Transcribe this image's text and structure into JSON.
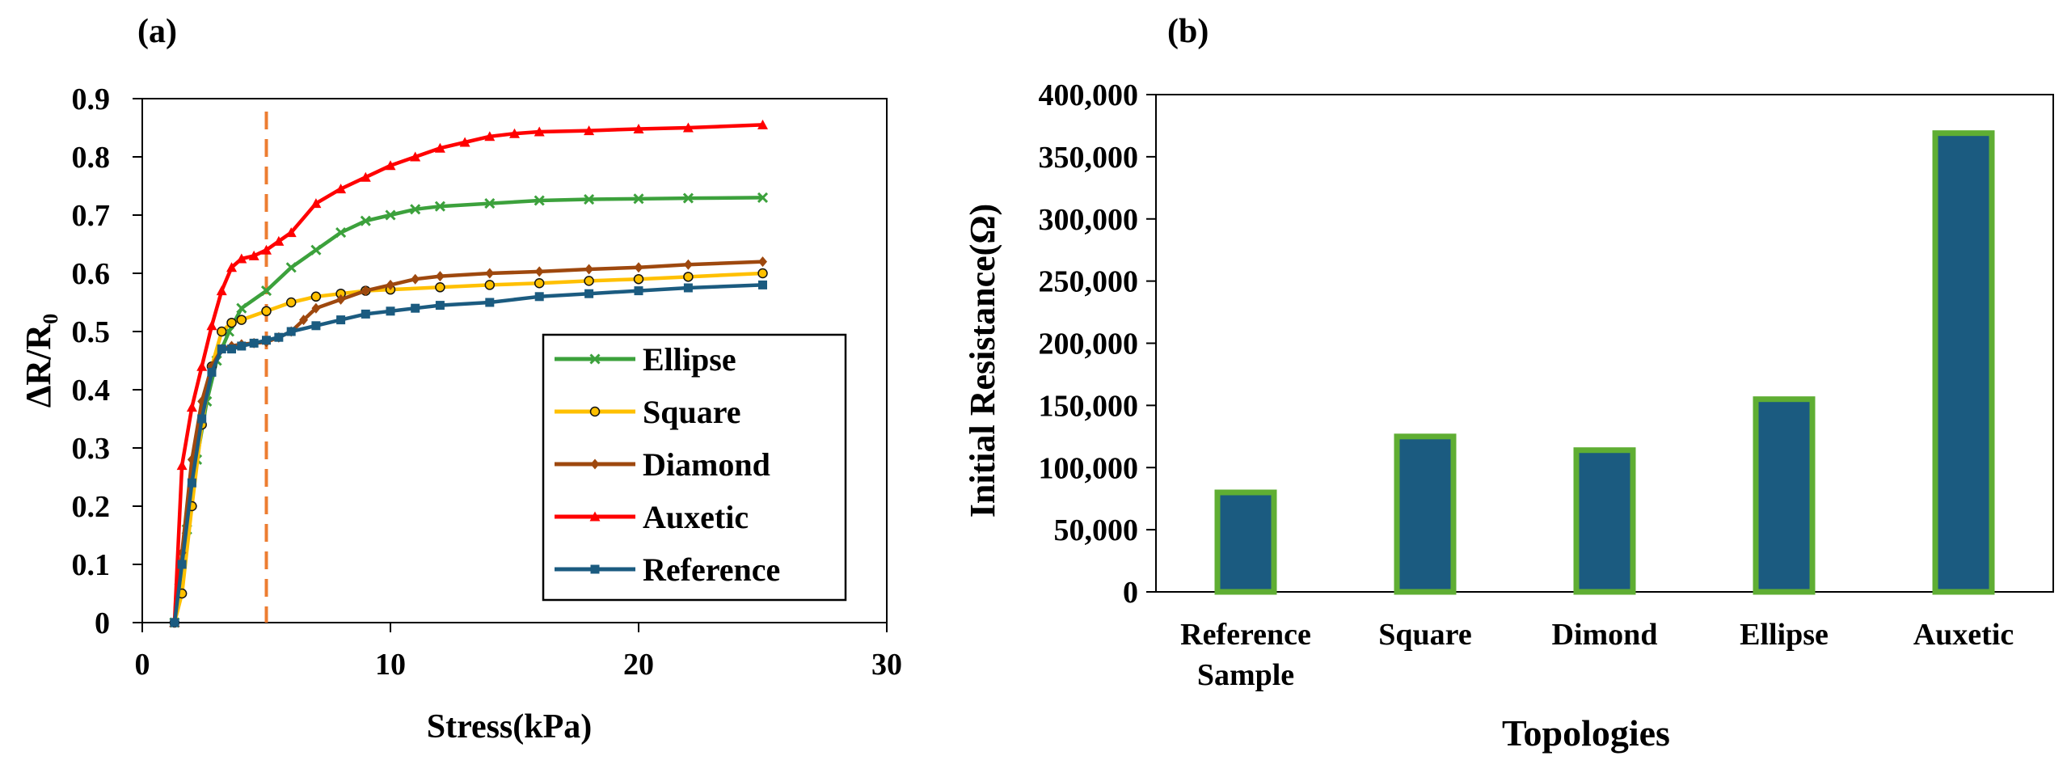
{
  "chart_data": [
    {
      "panel_label": "(a)",
      "type": "line",
      "xlabel": "Stress(kPa)",
      "ylabel": "ΔR/R₀",
      "xlim": [
        0,
        30
      ],
      "ylim": [
        0,
        0.9
      ],
      "xticks": [
        "0",
        "10",
        "20",
        "30"
      ],
      "yticks": [
        "0",
        "0.1",
        "0.2",
        "0.3",
        "0.4",
        "0.5",
        "0.6",
        "0.7",
        "0.8",
        "0.9"
      ],
      "grid": false,
      "legend_position": "bottom-right",
      "annotations": [
        {
          "type": "vertical-dashed-line",
          "x": 5,
          "color": "#ED7D31"
        }
      ],
      "series": [
        {
          "name": "Ellipse",
          "color": "#3CA13C",
          "marker": "x",
          "x": [
            1.3,
            1.5,
            1.8,
            2.2,
            2.6,
            3.0,
            3.5,
            4.0,
            5.0,
            6.0,
            7.0,
            8.0,
            9.0,
            10.0,
            11.0,
            12.0,
            14.0,
            16.0,
            18.0,
            20.0,
            22.0,
            25.0
          ],
          "y": [
            0.0,
            0.06,
            0.16,
            0.28,
            0.38,
            0.45,
            0.5,
            0.54,
            0.57,
            0.61,
            0.64,
            0.67,
            0.69,
            0.7,
            0.71,
            0.715,
            0.72,
            0.725,
            0.727,
            0.728,
            0.729,
            0.73
          ]
        },
        {
          "name": "Square",
          "color": "#FFC000",
          "marker": "circle",
          "x": [
            1.3,
            1.6,
            2.0,
            2.4,
            2.8,
            3.2,
            3.6,
            4.0,
            5.0,
            6.0,
            7.0,
            8.0,
            9.0,
            10.0,
            12.0,
            14.0,
            16.0,
            18.0,
            20.0,
            22.0,
            25.0
          ],
          "y": [
            0.0,
            0.05,
            0.2,
            0.34,
            0.44,
            0.5,
            0.515,
            0.52,
            0.535,
            0.55,
            0.56,
            0.565,
            0.57,
            0.572,
            0.576,
            0.58,
            0.583,
            0.587,
            0.59,
            0.594,
            0.6
          ]
        },
        {
          "name": "Diamond",
          "color": "#9E480E",
          "marker": "diamond",
          "x": [
            1.3,
            1.6,
            2.0,
            2.4,
            2.8,
            3.2,
            3.6,
            4.0,
            4.5,
            5.0,
            5.5,
            6.0,
            6.5,
            7.0,
            8.0,
            9.0,
            10.0,
            11.0,
            12.0,
            14.0,
            16.0,
            18.0,
            20.0,
            22.0,
            25.0
          ],
          "y": [
            0.0,
            0.12,
            0.28,
            0.38,
            0.44,
            0.47,
            0.475,
            0.478,
            0.48,
            0.482,
            0.49,
            0.5,
            0.52,
            0.54,
            0.555,
            0.57,
            0.58,
            0.59,
            0.595,
            0.6,
            0.603,
            0.607,
            0.61,
            0.615,
            0.62
          ]
        },
        {
          "name": "Auxetic",
          "color": "#FF0000",
          "marker": "triangle",
          "x": [
            1.3,
            1.6,
            2.0,
            2.4,
            2.8,
            3.2,
            3.6,
            4.0,
            4.5,
            5.0,
            5.5,
            6.0,
            7.0,
            8.0,
            9.0,
            10.0,
            11.0,
            12.0,
            13.0,
            14.0,
            15.0,
            16.0,
            18.0,
            20.0,
            22.0,
            25.0
          ],
          "y": [
            0.0,
            0.27,
            0.37,
            0.44,
            0.51,
            0.57,
            0.61,
            0.625,
            0.63,
            0.64,
            0.655,
            0.67,
            0.72,
            0.745,
            0.765,
            0.785,
            0.8,
            0.815,
            0.825,
            0.835,
            0.84,
            0.843,
            0.845,
            0.848,
            0.85,
            0.855
          ]
        },
        {
          "name": "Reference",
          "color": "#1B5B80",
          "marker": "square",
          "x": [
            1.3,
            1.6,
            2.0,
            2.4,
            2.8,
            3.2,
            3.6,
            4.0,
            4.5,
            5.0,
            5.5,
            6.0,
            7.0,
            8.0,
            9.0,
            10.0,
            11.0,
            12.0,
            14.0,
            16.0,
            18.0,
            20.0,
            22.0,
            25.0
          ],
          "y": [
            0.0,
            0.1,
            0.24,
            0.35,
            0.43,
            0.47,
            0.47,
            0.475,
            0.48,
            0.485,
            0.49,
            0.5,
            0.51,
            0.52,
            0.53,
            0.535,
            0.54,
            0.545,
            0.55,
            0.56,
            0.565,
            0.57,
            0.575,
            0.58
          ]
        }
      ]
    },
    {
      "panel_label": "(b)",
      "type": "bar",
      "title": "",
      "xlabel": "Topologies",
      "ylabel": "Initial Resistance(Ω)",
      "ylim": [
        0,
        400000
      ],
      "grid": false,
      "yticks": [
        "0",
        "50,000",
        "100,000",
        "150,000",
        "200,000",
        "250,000",
        "300,000",
        "350,000",
        "400,000"
      ],
      "categories": [
        [
          "Reference",
          "Sample"
        ],
        [
          "Square"
        ],
        [
          "Dimond"
        ],
        [
          "Ellipse"
        ],
        [
          "Auxetic"
        ]
      ],
      "values": [
        80000,
        125000,
        114000,
        155000,
        369000
      ],
      "bar_fill": "#1B5B80",
      "bar_edge": "#5FAE33"
    }
  ]
}
